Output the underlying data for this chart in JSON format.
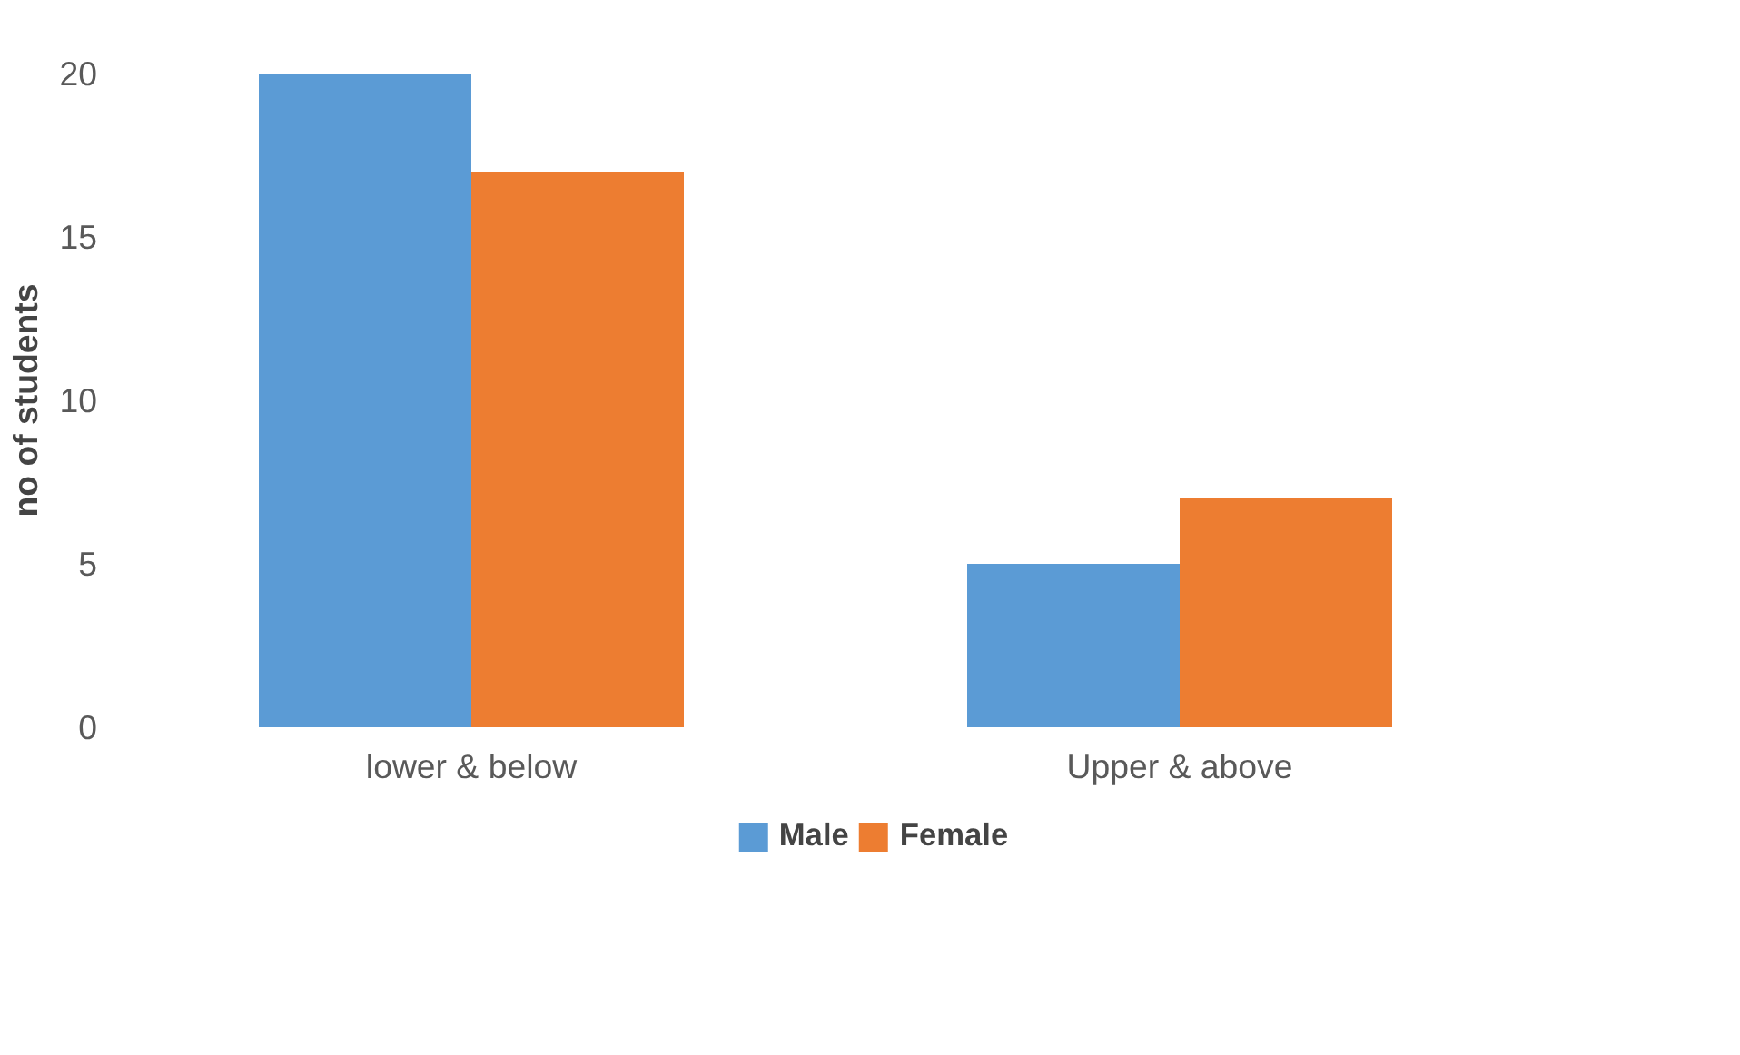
{
  "chart_data": {
    "type": "bar",
    "ylabel": "no of students",
    "categories": [
      "lower & below",
      "Upper & above"
    ],
    "series": [
      {
        "name": "Male",
        "color": "#5b9bd5",
        "values": [
          20,
          5
        ]
      },
      {
        "name": "Female",
        "color": "#ed7d31",
        "values": [
          17,
          7
        ]
      }
    ],
    "ylim": [
      0,
      20
    ],
    "yticks": [
      0,
      5,
      10,
      15,
      20
    ],
    "grid": false,
    "legend": "bottom"
  }
}
